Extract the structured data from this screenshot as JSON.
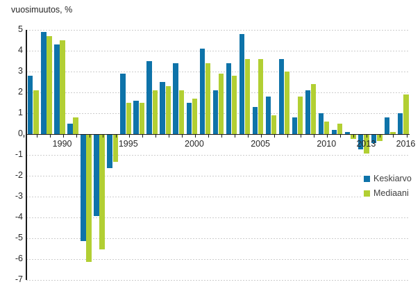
{
  "title": "vuosimuutos, %",
  "colors": {
    "keskiarvo": "#0e73a9",
    "mediaani": "#b2cf33",
    "grid": "#cccccc",
    "axis": "#1a1a1a",
    "text": "#262626",
    "legend_text": "#404040",
    "background": "#ffffff"
  },
  "axes": {
    "y_ticks": [
      5,
      4,
      3,
      2,
      1,
      0,
      -1,
      -2,
      -3,
      -4,
      -5,
      -6,
      -7
    ],
    "x_labels_shown": [
      1990,
      1995,
      2000,
      2005,
      2010,
      2013,
      2016
    ]
  },
  "legend": {
    "items": [
      {
        "label": "Keskiarvo",
        "color": "#0e73a9"
      },
      {
        "label": "Mediaani",
        "color": "#b2cf33"
      }
    ]
  },
  "chart_data": {
    "type": "bar",
    "title": "vuosimuutos, %",
    "ylabel": "vuosimuutos, %",
    "ylim": [
      -7,
      5
    ],
    "grid": true,
    "legend_position": "right-middle",
    "x_tick_labels": [
      1990,
      1995,
      2000,
      2005,
      2010,
      2013,
      2016
    ],
    "categories": [
      1988,
      1989,
      1990,
      1991,
      1992,
      1993,
      1994,
      1995,
      1996,
      1997,
      1998,
      1999,
      2000,
      2001,
      2002,
      2003,
      2004,
      2005,
      2006,
      2007,
      2008,
      2009,
      2010,
      2011,
      2012,
      2013,
      2014,
      2015,
      2016
    ],
    "series": [
      {
        "name": "Keskiarvo",
        "color": "#0e73a9",
        "values": [
          2.8,
          4.9,
          4.3,
          0.5,
          -5.1,
          -3.9,
          -1.6,
          2.9,
          1.6,
          3.5,
          2.5,
          3.4,
          1.5,
          4.1,
          2.1,
          3.4,
          4.8,
          1.3,
          1.8,
          3.6,
          0.8,
          2.1,
          1.0,
          0.2,
          0.1,
          -0.7,
          -0.4,
          0.8,
          1.0
        ]
      },
      {
        "name": "Mediaani",
        "color": "#b2cf33",
        "values": [
          2.1,
          4.7,
          4.5,
          0.8,
          -6.1,
          -5.5,
          -1.3,
          1.5,
          1.5,
          2.1,
          2.3,
          2.1,
          1.7,
          3.4,
          2.9,
          2.8,
          3.6,
          3.6,
          0.9,
          3.0,
          1.8,
          2.4,
          0.6,
          0.5,
          -0.2,
          -0.9,
          -0.3,
          0.1,
          1.9
        ]
      }
    ]
  }
}
